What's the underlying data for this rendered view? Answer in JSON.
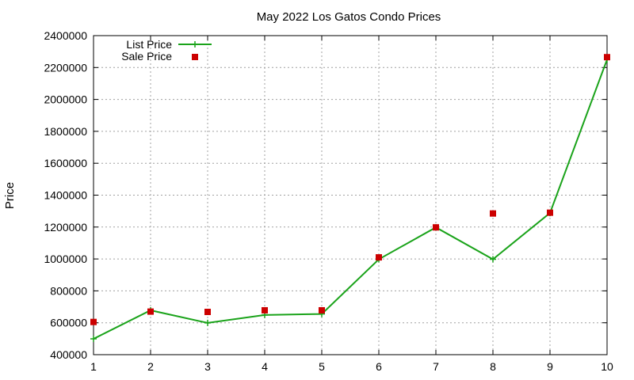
{
  "chart_data": {
    "type": "line",
    "title": "May 2022 Los Gatos Condo Prices",
    "xlabel": "",
    "ylabel": "Price",
    "x": [
      1,
      2,
      3,
      4,
      5,
      6,
      7,
      8,
      9,
      10
    ],
    "xlim": [
      1,
      10
    ],
    "ylim": [
      400000,
      2400000
    ],
    "xticks": [
      "1",
      "2",
      "3",
      "4",
      "5",
      "6",
      "7",
      "8",
      "9",
      "10"
    ],
    "yticks": [
      "400000",
      "600000",
      "800000",
      "1000000",
      "1200000",
      "1400000",
      "1600000",
      "1800000",
      "2000000",
      "2200000",
      "2400000"
    ],
    "grid": true,
    "legend_position": "top-left",
    "series": [
      {
        "name": "List Price",
        "style": "line-with-plus-markers",
        "color": "#1aa31a",
        "values": [
          499000,
          678000,
          599000,
          649000,
          655000,
          998000,
          1198000,
          998000,
          1288000,
          2250000
        ]
      },
      {
        "name": "Sale Price",
        "style": "square-markers",
        "color": "#cc0000",
        "values": [
          605000,
          670000,
          668000,
          678000,
          678000,
          1010000,
          1198000,
          1285000,
          1290000,
          2265000
        ]
      }
    ]
  }
}
